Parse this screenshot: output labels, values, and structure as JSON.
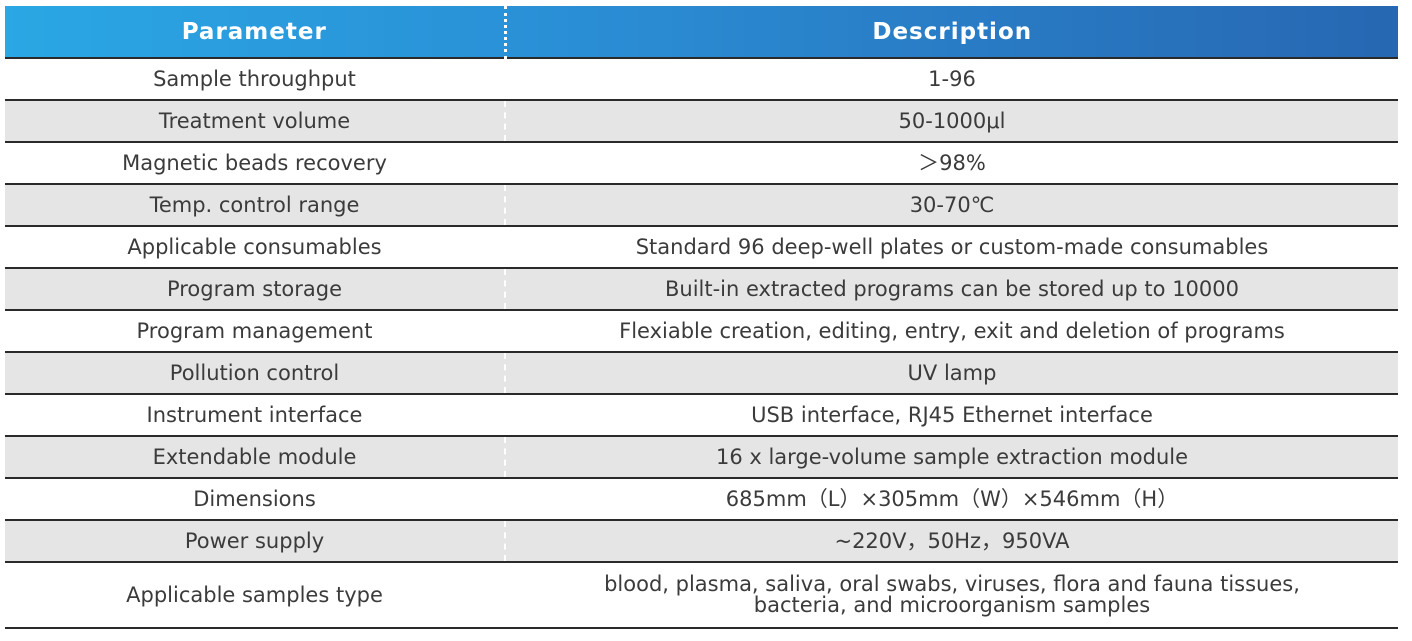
{
  "table": {
    "headers": {
      "parameter": "Parameter",
      "description": "Description"
    },
    "rows": [
      {
        "parameter": "Sample throughput",
        "description": "1-96"
      },
      {
        "parameter": "Treatment volume",
        "description": "50-1000μl"
      },
      {
        "parameter": "Magnetic beads recovery",
        "description": "＞98%"
      },
      {
        "parameter": "Temp. control range",
        "description": "30-70℃"
      },
      {
        "parameter": "Applicable consumables",
        "description": "Standard 96 deep-well plates or custom-made consumables"
      },
      {
        "parameter": "Program storage",
        "description": "Built-in extracted programs can be stored up to 10000"
      },
      {
        "parameter": "Program management",
        "description": "Flexiable creation, editing, entry, exit and deletion of programs"
      },
      {
        "parameter": "Pollution control",
        "description": "UV lamp"
      },
      {
        "parameter": "Instrument interface",
        "description": "USB interface, RJ45 Ethernet interface"
      },
      {
        "parameter": "Extendable module",
        "description": "16 x large-volume sample extraction module"
      },
      {
        "parameter": "Dimensions",
        "description": "685mm（L）×305mm（W）×546mm（H）"
      },
      {
        "parameter": "Power supply",
        "description": "~220V，50Hz，950VA"
      },
      {
        "parameter": "Applicable samples type",
        "description_line1": "blood, plasma, saliva, oral swabs, viruses, flora and fauna tissues,",
        "description_line2": "bacteria, and microorganism samples"
      }
    ]
  },
  "colors": {
    "header_start": "#2aa7e4",
    "header_end": "#2767b2",
    "alt_row": "#e5e5e5",
    "rule": "#2a2a2a"
  }
}
